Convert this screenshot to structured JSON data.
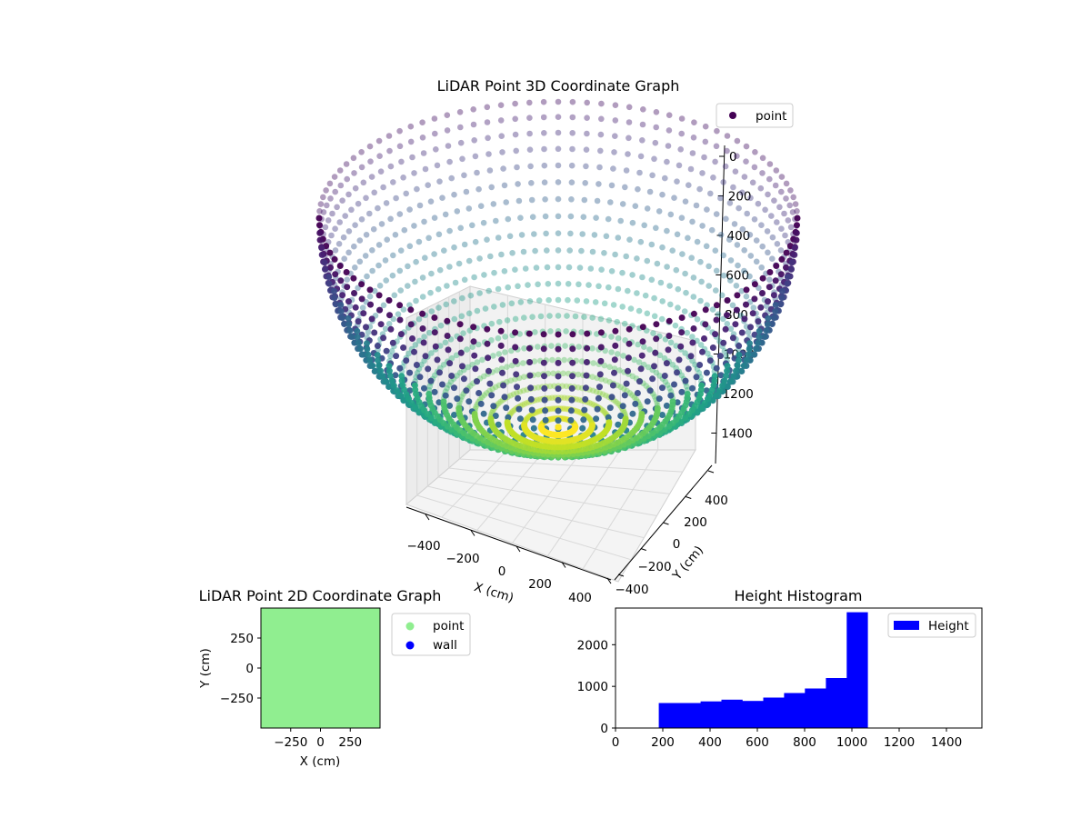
{
  "chart_data": [
    {
      "type": "scatter",
      "projection": "3d",
      "title": "LiDAR Point 3D Coordinate Graph",
      "xlabel": "X (cm)",
      "ylabel": "Y (cm)",
      "zlabel": "",
      "x_ticks": [
        "−400",
        "−200",
        "0",
        "200",
        "400"
      ],
      "y_ticks": [
        "−400",
        "−200",
        "0",
        "200",
        "400"
      ],
      "z_ticks": [
        "0",
        "200",
        "400",
        "600",
        "800",
        "1000",
        "1200",
        "1400"
      ],
      "z_inverted": true,
      "legend": {
        "placement": "top-right",
        "entries": [
          {
            "label": "point",
            "color": "#440154"
          }
        ]
      },
      "colormap": "viridis",
      "surface": {
        "shape": "hemispherical bowl",
        "radius_cm": 500,
        "depth_cm": 1070
      },
      "grid": true
    },
    {
      "type": "scatter",
      "title": "LiDAR Point 2D Coordinate Graph",
      "xlabel": "X (cm)",
      "ylabel": "Y (cm)",
      "x_ticks": [
        "−250",
        "0",
        "250"
      ],
      "y_ticks": [
        "250",
        "0",
        "−250"
      ],
      "xlim": [
        -500,
        500
      ],
      "ylim": [
        -500,
        500
      ],
      "series": [
        {
          "name": "point",
          "color": "#90ee90"
        },
        {
          "name": "wall",
          "color": "#0000ff"
        }
      ],
      "legend": {
        "placement": "outside-right",
        "entries": [
          {
            "label": "point",
            "color": "#90ee90"
          },
          {
            "label": "wall",
            "color": "#0000ff"
          }
        ]
      }
    },
    {
      "type": "bar",
      "subtype": "histogram",
      "title": "Height Histogram",
      "xlim": [
        0,
        1550
      ],
      "ylim": [
        0,
        2880
      ],
      "x_ticks": [
        "0",
        "200",
        "400",
        "600",
        "800",
        "1000",
        "1200",
        "1400"
      ],
      "y_ticks": [
        "0",
        "1000",
        "2000"
      ],
      "bin_edges": [
        183,
        271,
        360,
        448,
        536,
        625,
        713,
        801,
        890,
        978,
        1066
      ],
      "values": [
        600,
        600,
        640,
        680,
        650,
        730,
        840,
        950,
        1200,
        2780
      ],
      "series": [
        {
          "name": "Height",
          "color": "#0000ff"
        }
      ],
      "legend": {
        "placement": "upper-right",
        "entries": [
          {
            "label": "Height",
            "color": "#0000ff"
          }
        ]
      }
    }
  ]
}
